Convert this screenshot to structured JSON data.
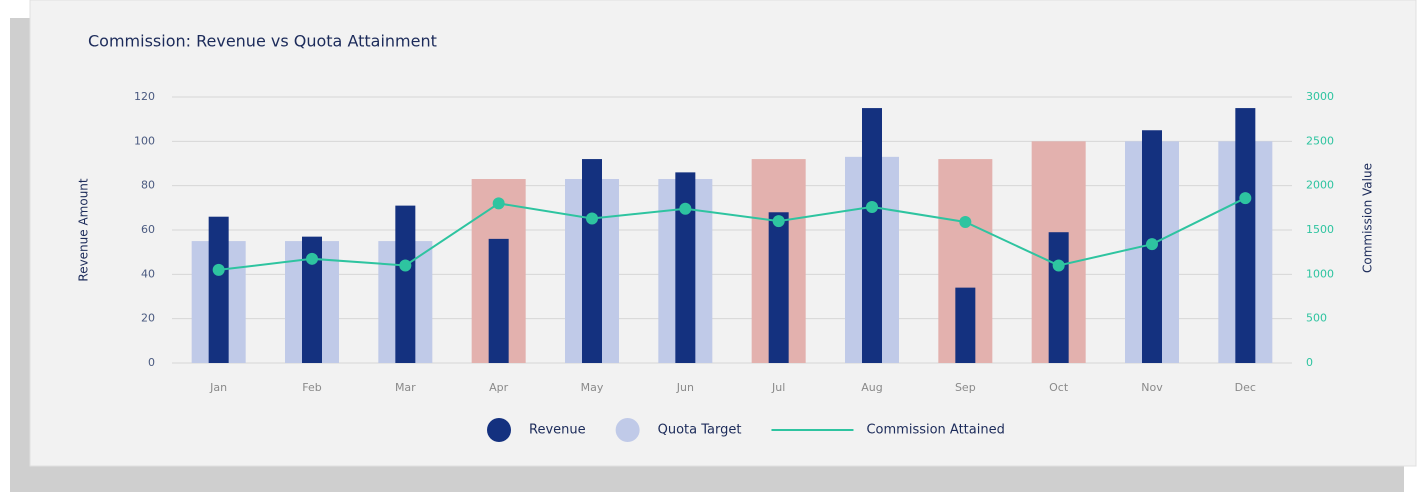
{
  "chart_data": {
    "type": "bar-line",
    "title": "Commission: Revenue vs Quota Attainment",
    "ylabel": "Revenue Amount",
    "y2label": "Commission Value",
    "categories": [
      "Jan",
      "Feb",
      "Mar",
      "Apr",
      "May",
      "Jun",
      "Jul",
      "Aug",
      "Sep",
      "Oct",
      "Nov",
      "Dec"
    ],
    "series": [
      {
        "name": "Revenue",
        "type": "bar",
        "color": "#14317f",
        "values": [
          66,
          57,
          71,
          56,
          92,
          86,
          68,
          115,
          34,
          59,
          105,
          115
        ]
      },
      {
        "name": "Quota Target",
        "type": "bar",
        "color": "#c0cae8",
        "colors": [
          "#c0cae8",
          "#c0cae8",
          "#c0cae8",
          "#e3b1ae",
          "#c0cae8",
          "#c0cae8",
          "#e3b1ae",
          "#c0cae8",
          "#e3b1ae",
          "#e3b1ae",
          "#c0cae8",
          "#c0cae8"
        ],
        "values": [
          55,
          55,
          55,
          83,
          83,
          83,
          92,
          93,
          92,
          100,
          100,
          100
        ]
      },
      {
        "name": "Commission Attained",
        "type": "line",
        "axis": "y2",
        "color": "#2ec4a0",
        "values": [
          1050,
          1175,
          1100,
          1800,
          1630,
          1740,
          1600,
          1760,
          1590,
          1100,
          1340,
          1860
        ]
      }
    ],
    "ylim": [
      0,
      120
    ],
    "yticks": [
      0,
      20,
      40,
      60,
      80,
      100,
      120
    ],
    "y2lim": [
      0,
      3000
    ],
    "y2ticks": [
      0,
      500,
      1000,
      1500,
      2000,
      2500,
      3000
    ],
    "grid": true,
    "legend": "bottom"
  }
}
